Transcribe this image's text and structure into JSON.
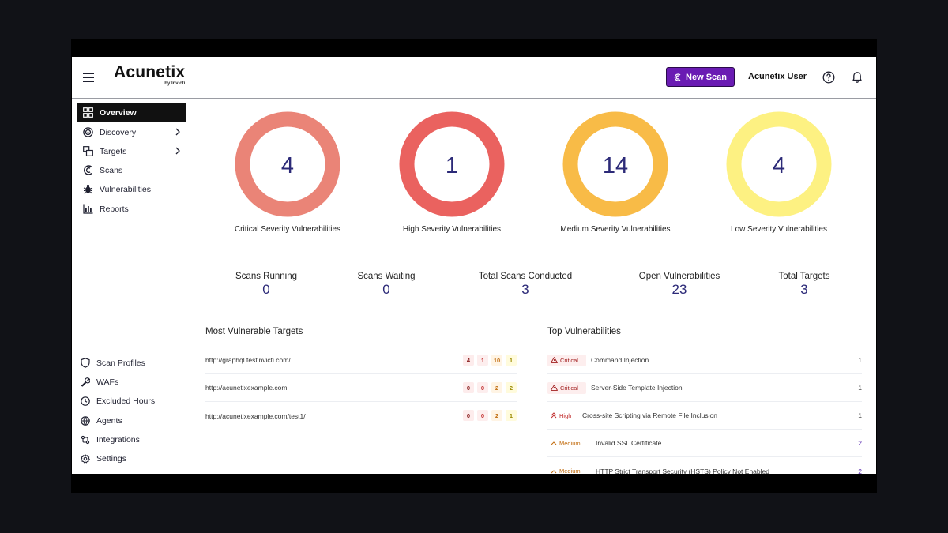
{
  "header": {
    "logo_main": "Acunetix",
    "logo_sub": "by Invicti",
    "new_scan_label": "New Scan",
    "user_name": "Acunetix User"
  },
  "sidebar": {
    "items": [
      {
        "label": "Overview",
        "icon": "grid-icon",
        "active": true
      },
      {
        "label": "Discovery",
        "icon": "target-icon",
        "has_chevron": true
      },
      {
        "label": "Targets",
        "icon": "targets-icon",
        "has_chevron": true
      },
      {
        "label": "Scans",
        "icon": "scan-icon"
      },
      {
        "label": "Vulnerabilities",
        "icon": "bug-icon"
      },
      {
        "label": "Reports",
        "icon": "chart-icon"
      }
    ],
    "bottom_items": [
      {
        "label": "Scan Profiles",
        "icon": "shield-icon"
      },
      {
        "label": "WAFs",
        "icon": "wrench-icon"
      },
      {
        "label": "Excluded Hours",
        "icon": "clock-icon"
      },
      {
        "label": "Agents",
        "icon": "agent-icon"
      },
      {
        "label": "Integrations",
        "icon": "integrations-icon"
      },
      {
        "label": "Settings",
        "icon": "gear-icon"
      }
    ]
  },
  "severity": [
    {
      "value": "4",
      "label": "Critical Severity Vulnerabilities",
      "color": "#ea8477"
    },
    {
      "value": "1",
      "label": "High Severity Vulnerabilities",
      "color": "#ea625f"
    },
    {
      "value": "14",
      "label": "Medium Severity Vulnerabilities",
      "color": "#f8bb47"
    },
    {
      "value": "4",
      "label": "Low Severity Vulnerabilities",
      "color": "#fdf182"
    }
  ],
  "stats": [
    {
      "label": "Scans Running",
      "value": "0"
    },
    {
      "label": "Scans Waiting",
      "value": "0"
    },
    {
      "label": "Total Scans Conducted",
      "value": "3"
    },
    {
      "label": "Open Vulnerabilities",
      "value": "23"
    },
    {
      "label": "Total Targets",
      "value": "3"
    }
  ],
  "most_vulnerable": {
    "title": "Most Vulnerable Targets",
    "rows": [
      {
        "url": "http://graphql.testinvicti.com/",
        "critical": "4",
        "high": "1",
        "medium": "10",
        "low": "1"
      },
      {
        "url": "http://acunetixexample.com",
        "critical": "0",
        "high": "0",
        "medium": "2",
        "low": "2"
      },
      {
        "url": "http://acunetixexample.com/test1/",
        "critical": "0",
        "high": "0",
        "medium": "2",
        "low": "1"
      }
    ]
  },
  "top_vulnerabilities": {
    "title": "Top Vulnerabilities",
    "rows": [
      {
        "severity": "Critical",
        "name": "Command Injection",
        "count": "1"
      },
      {
        "severity": "Critical",
        "name": "Server-Side Template Injection",
        "count": "1"
      },
      {
        "severity": "High",
        "name": "Cross-site Scripting via Remote File Inclusion",
        "count": "1"
      },
      {
        "severity": "Medium",
        "name": "Invalid SSL Certificate",
        "count": "2"
      },
      {
        "severity": "Medium",
        "name": "HTTP Strict Transport Security (HSTS) Policy Not Enabled",
        "count": "2"
      }
    ]
  }
}
